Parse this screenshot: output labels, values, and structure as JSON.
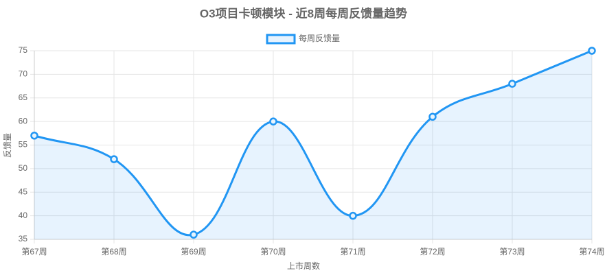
{
  "chart_data": {
    "type": "line",
    "title": "O3项目卡顿模块 - 近8周每周反馈量趋势",
    "x_label": "上市周数",
    "y_label": "反馈量",
    "categories": [
      "第67周",
      "第68周",
      "第69周",
      "第70周",
      "第71周",
      "第72周",
      "第73周",
      "第74周"
    ],
    "series": [
      {
        "name": "每周反馈量",
        "color": "#2196f3",
        "values": [
          57,
          52,
          36,
          60,
          40,
          61,
          68,
          75
        ]
      }
    ],
    "ylim": [
      35,
      75
    ],
    "yticks": [
      35,
      40,
      45,
      50,
      55,
      60,
      65,
      70,
      75
    ],
    "grid": true,
    "fill": true,
    "smooth": true,
    "legend": "top"
  }
}
